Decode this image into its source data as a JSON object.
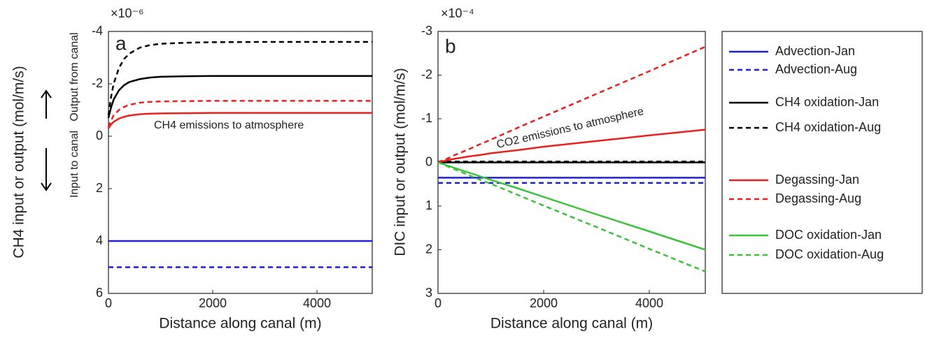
{
  "chart_data": [
    {
      "type": "line",
      "panel": "a",
      "multiplier": "×10⁻⁶",
      "xlabel": "Distance along canal (m)",
      "ylabel": "CH4 input or output (mol/m/s)",
      "annotations": [
        "Output from canal",
        "Input to canal",
        "CH4 emissions to atmosphere"
      ],
      "xlim": [
        0,
        5060
      ],
      "xticks": [
        0,
        2000,
        4000
      ],
      "ylim": [
        -4,
        6
      ],
      "yticks": [
        -4,
        -2,
        0,
        2,
        4,
        6
      ],
      "y_reversed": true,
      "x": [
        0,
        50,
        100,
        200,
        300,
        400,
        600,
        800,
        1000,
        1500,
        2000,
        3000,
        4000,
        5060
      ],
      "series": [
        {
          "name": "Advection-Jan",
          "color": "#1f1fd6",
          "dash": false,
          "values": [
            4,
            4,
            4,
            4,
            4,
            4,
            4,
            4,
            4,
            4,
            4,
            4,
            4,
            4
          ]
        },
        {
          "name": "Advection-Aug",
          "color": "#1f1fd6",
          "dash": true,
          "values": [
            5,
            5,
            5,
            5,
            5,
            5,
            5,
            5,
            5,
            5,
            5,
            5,
            5,
            5
          ]
        },
        {
          "name": "CH4 oxidation-Jan",
          "color": "#000000",
          "dash": false,
          "values": [
            -0.7,
            -1.1,
            -1.4,
            -1.75,
            -1.95,
            -2.07,
            -2.18,
            -2.24,
            -2.27,
            -2.29,
            -2.3,
            -2.3,
            -2.3,
            -2.3
          ]
        },
        {
          "name": "CH4 oxidation-Aug",
          "color": "#000000",
          "dash": true,
          "values": [
            -0.8,
            -1.5,
            -2.0,
            -2.6,
            -2.95,
            -3.15,
            -3.38,
            -3.48,
            -3.53,
            -3.57,
            -3.59,
            -3.6,
            -3.6,
            -3.6
          ]
        },
        {
          "name": "Degassing-Jan",
          "color": "#e8201e",
          "dash": false,
          "values": [
            -0.3,
            -0.45,
            -0.55,
            -0.67,
            -0.74,
            -0.79,
            -0.84,
            -0.86,
            -0.87,
            -0.88,
            -0.89,
            -0.89,
            -0.89,
            -0.89
          ]
        },
        {
          "name": "Degassing-Aug",
          "color": "#e8201e",
          "dash": true,
          "values": [
            -0.35,
            -0.6,
            -0.8,
            -1.0,
            -1.12,
            -1.2,
            -1.28,
            -1.31,
            -1.33,
            -1.34,
            -1.35,
            -1.35,
            -1.35,
            -1.35
          ]
        }
      ]
    },
    {
      "type": "line",
      "panel": "b",
      "multiplier": "×10⁻⁴",
      "xlabel": "Distance along canal (m)",
      "ylabel": "DIC input or output (mol/m/s)",
      "annotations": [
        "CO2 emissions to atmosphere"
      ],
      "xlim": [
        0,
        5060
      ],
      "xticks": [
        0,
        2000,
        4000
      ],
      "ylim": [
        -3,
        3
      ],
      "yticks": [
        -3,
        -2,
        -1,
        0,
        1,
        2,
        3
      ],
      "y_reversed": true,
      "x": [
        0,
        50,
        100,
        200,
        300,
        400,
        600,
        800,
        1000,
        1500,
        2000,
        3000,
        4000,
        5060
      ],
      "series": [
        {
          "name": "Advection-Jan",
          "color": "#1f1fd6",
          "dash": false,
          "values": [
            0.35,
            0.35,
            0.35,
            0.35,
            0.35,
            0.35,
            0.35,
            0.35,
            0.35,
            0.35,
            0.35,
            0.35,
            0.35,
            0.35
          ]
        },
        {
          "name": "Advection-Aug",
          "color": "#1f1fd6",
          "dash": true,
          "values": [
            0.47,
            0.47,
            0.47,
            0.47,
            0.47,
            0.47,
            0.47,
            0.47,
            0.47,
            0.47,
            0.47,
            0.47,
            0.47,
            0.47
          ]
        },
        {
          "name": "CH4 oxidation-Jan",
          "color": "#000000",
          "dash": false,
          "values": [
            0,
            0,
            0,
            0,
            0,
            0,
            0,
            0,
            0,
            0,
            0,
            0,
            0,
            0
          ]
        },
        {
          "name": "CH4 oxidation-Aug",
          "color": "#000000",
          "dash": true,
          "values": [
            -0.02,
            -0.02,
            -0.02,
            -0.02,
            -0.02,
            -0.02,
            -0.02,
            -0.02,
            -0.02,
            -0.02,
            -0.02,
            -0.02,
            -0.02,
            -0.02
          ]
        },
        {
          "name": "Degassing-Jan",
          "color": "#e8201e",
          "dash": false,
          "values": [
            0,
            -0.02,
            -0.03,
            -0.06,
            -0.08,
            -0.1,
            -0.14,
            -0.17,
            -0.21,
            -0.28,
            -0.36,
            -0.49,
            -0.62,
            -0.75
          ]
        },
        {
          "name": "Degassing-Aug",
          "color": "#e8201e",
          "dash": true,
          "values": [
            0,
            -0.03,
            -0.05,
            -0.1,
            -0.16,
            -0.21,
            -0.31,
            -0.42,
            -0.52,
            -0.79,
            -1.05,
            -1.57,
            -2.09,
            -2.65
          ]
        },
        {
          "name": "DOC oxidation-Jan",
          "color": "#3cc13c",
          "dash": false,
          "values": [
            0,
            0.02,
            0.04,
            0.08,
            0.12,
            0.16,
            0.24,
            0.32,
            0.4,
            0.59,
            0.79,
            1.19,
            1.58,
            2.0
          ]
        },
        {
          "name": "DOC oxidation-Aug",
          "color": "#3cc13c",
          "dash": true,
          "values": [
            0,
            0.02,
            0.05,
            0.1,
            0.15,
            0.2,
            0.3,
            0.4,
            0.49,
            0.74,
            0.99,
            1.48,
            1.98,
            2.5
          ]
        }
      ]
    }
  ]
}
